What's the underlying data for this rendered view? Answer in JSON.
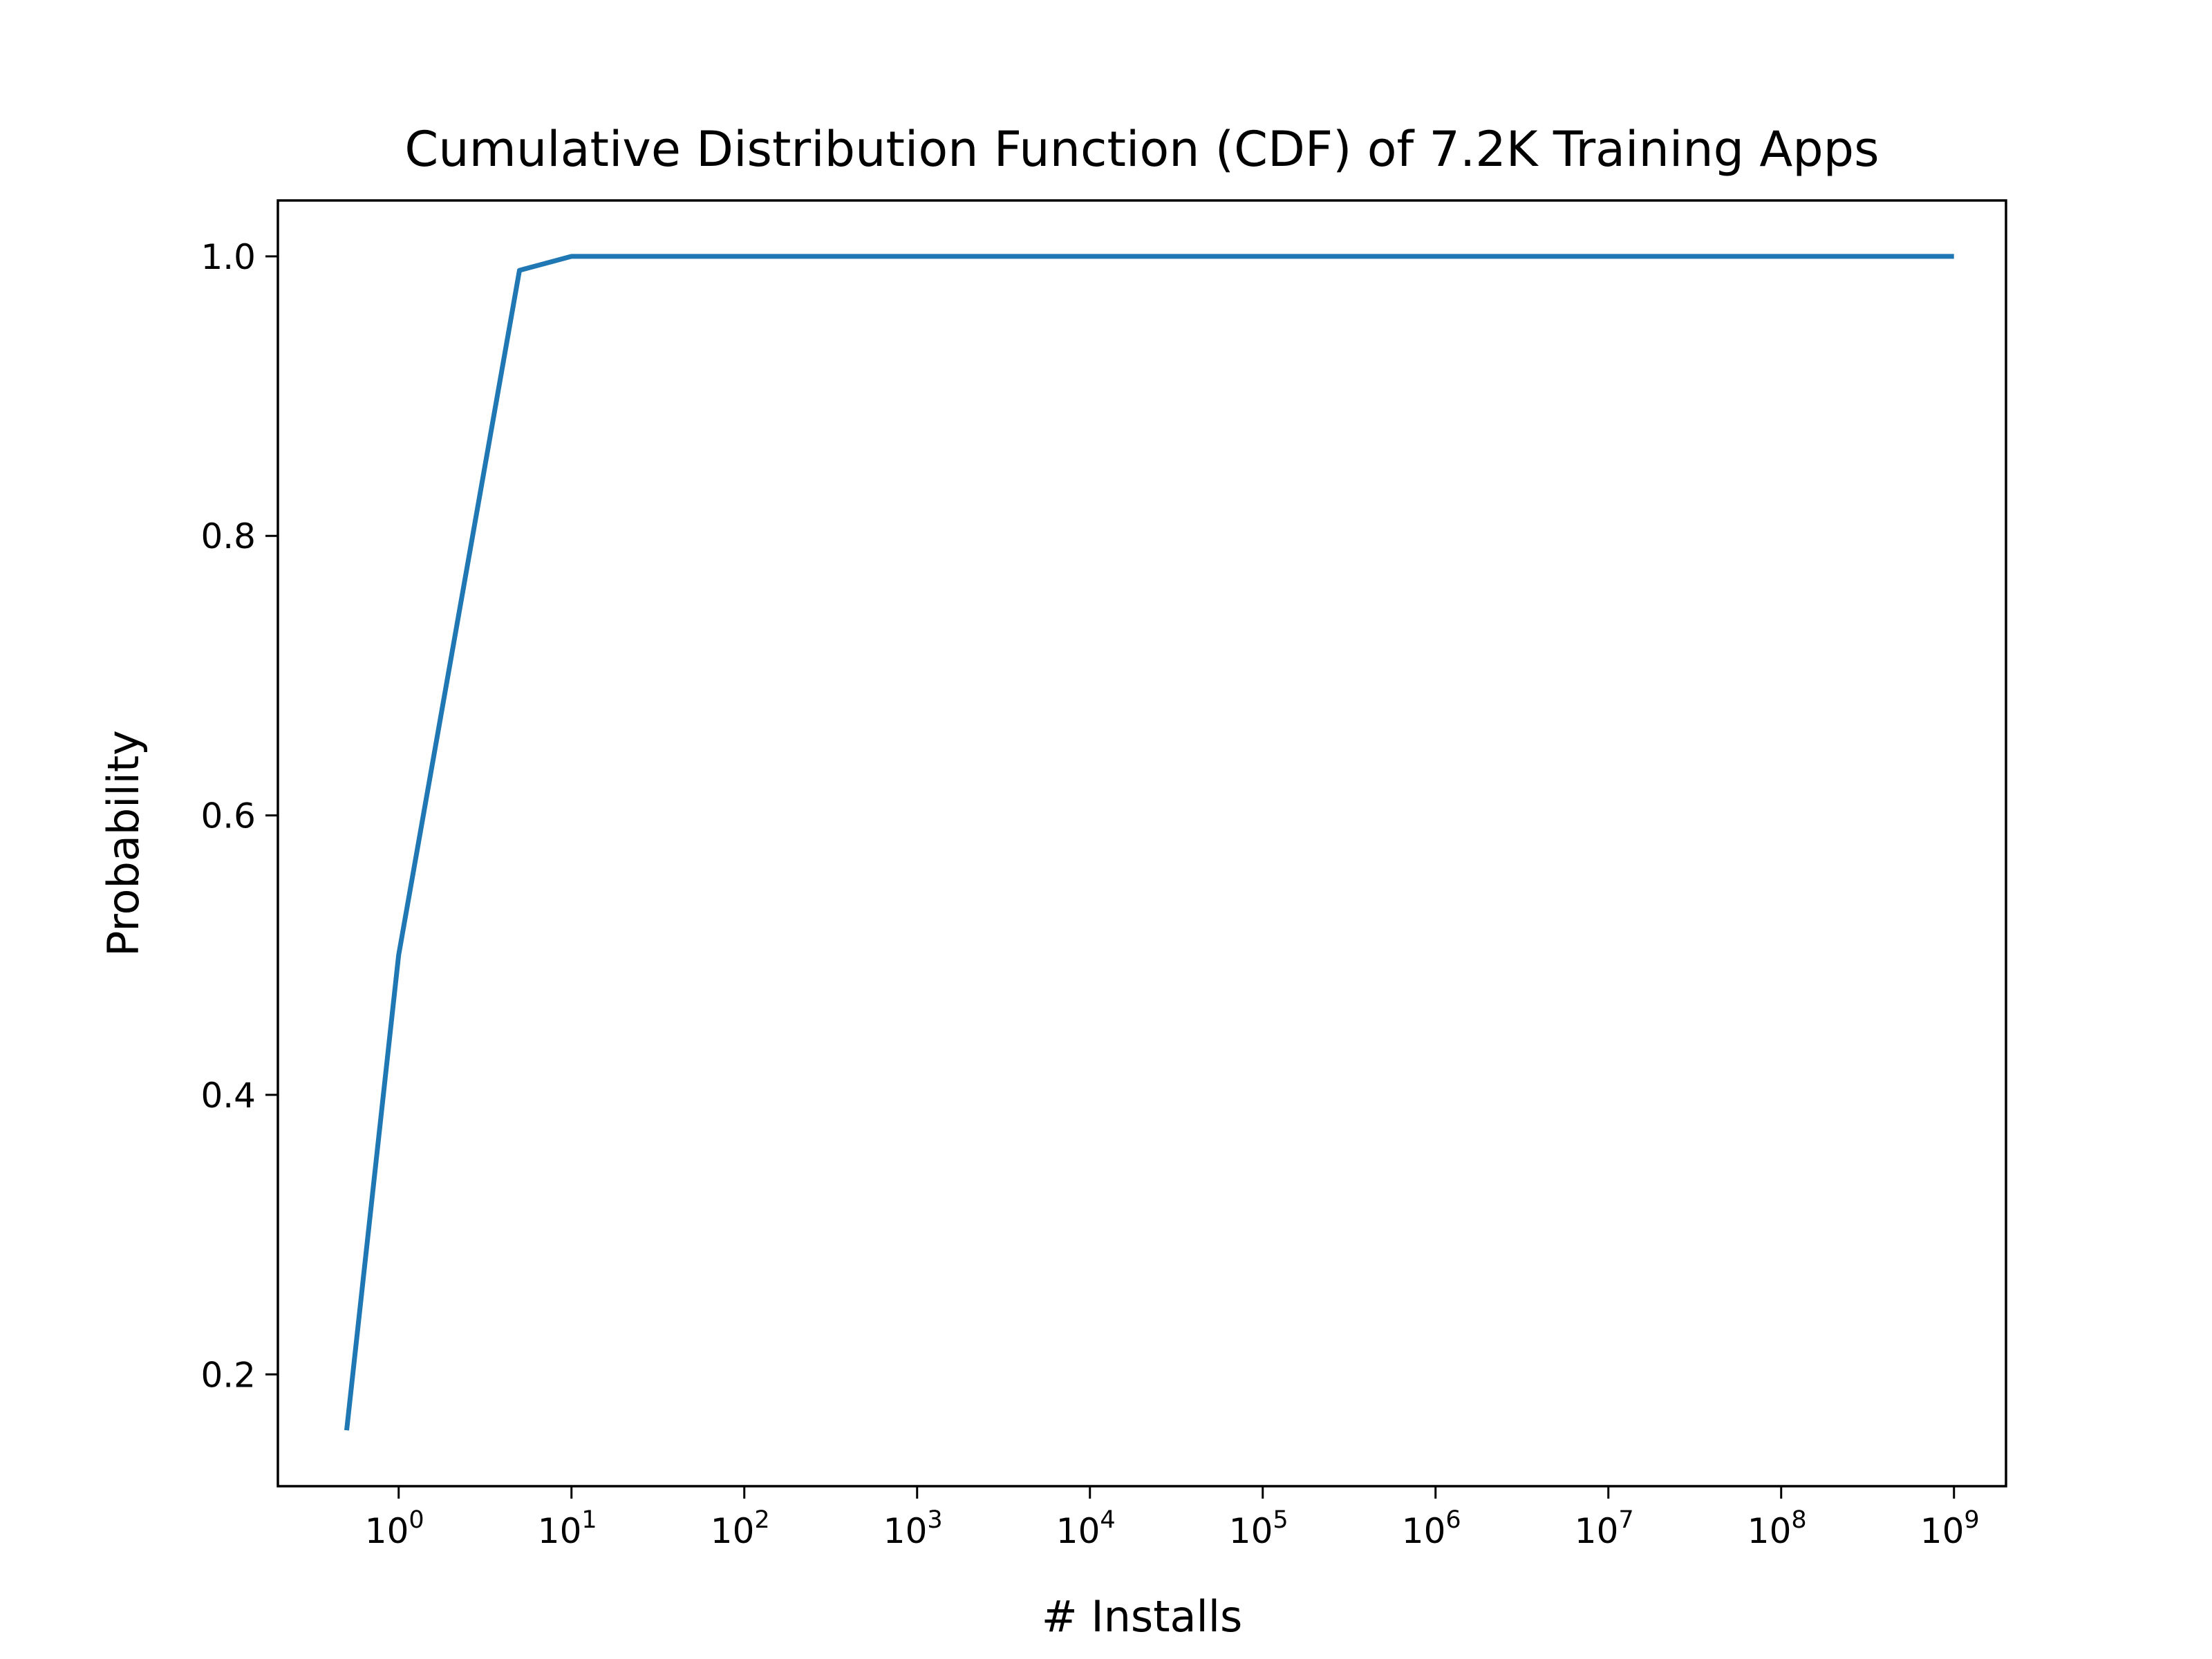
{
  "chart_data": {
    "type": "line",
    "title": "Cumulative Distribution Function (CDF) of 7.2K Training Apps",
    "xlabel": "# Installs",
    "ylabel": "Probability",
    "x_scale": "log",
    "xlim": [
      0.2,
      2000000000
    ],
    "ylim": [
      0.12,
      1.04
    ],
    "grid": false,
    "x_ticks": [
      {
        "base": "10",
        "exp": "0",
        "value": 1
      },
      {
        "base": "10",
        "exp": "1",
        "value": 10
      },
      {
        "base": "10",
        "exp": "2",
        "value": 100
      },
      {
        "base": "10",
        "exp": "3",
        "value": 1000
      },
      {
        "base": "10",
        "exp": "4",
        "value": 10000
      },
      {
        "base": "10",
        "exp": "5",
        "value": 100000
      },
      {
        "base": "10",
        "exp": "6",
        "value": 1000000
      },
      {
        "base": "10",
        "exp": "7",
        "value": 10000000
      },
      {
        "base": "10",
        "exp": "8",
        "value": 100000000
      },
      {
        "base": "10",
        "exp": "9",
        "value": 1000000000
      }
    ],
    "y_ticks": [
      {
        "label": "0.2",
        "value": 0.2
      },
      {
        "label": "0.4",
        "value": 0.4
      },
      {
        "label": "0.6",
        "value": 0.6
      },
      {
        "label": "0.8",
        "value": 0.8
      },
      {
        "label": "1.0",
        "value": 1.0
      }
    ],
    "series": [
      {
        "color": "#1f77b4",
        "x": [
          0.5,
          1,
          5,
          10,
          50,
          100,
          1000000000
        ],
        "y": [
          0.16,
          0.5,
          0.99,
          1.0,
          1.0,
          1.0,
          1.0
        ]
      }
    ]
  }
}
